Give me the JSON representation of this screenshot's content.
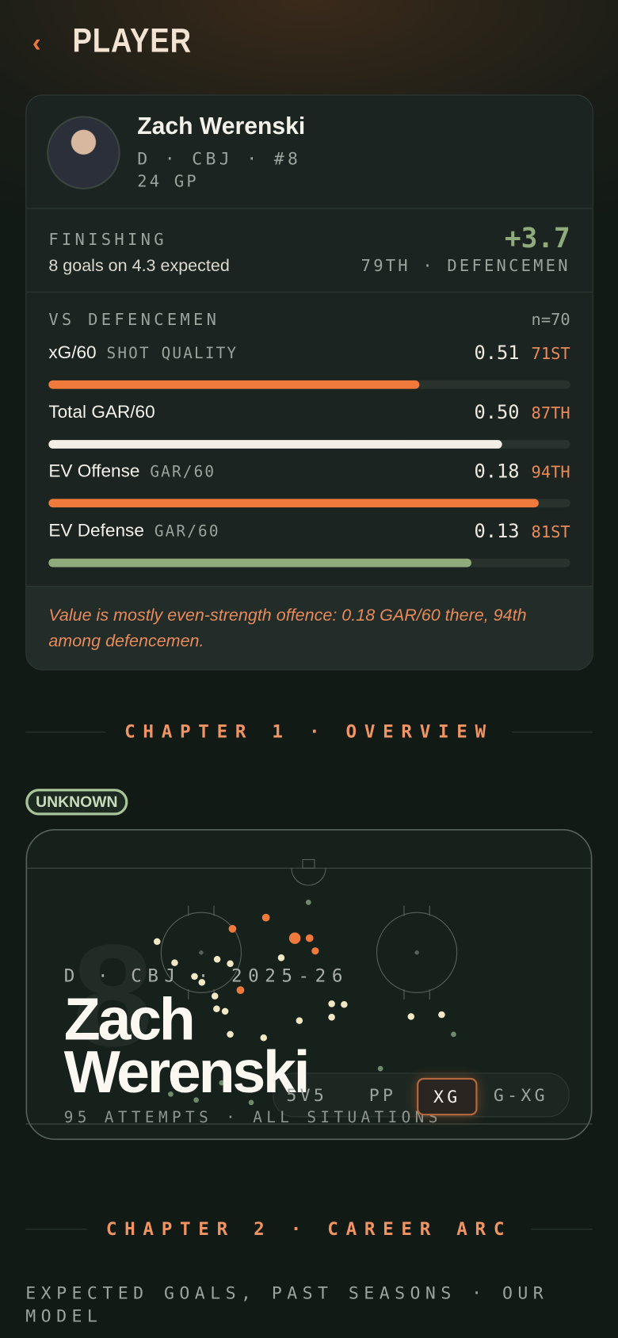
{
  "header": {
    "title": "PLAYER"
  },
  "player": {
    "name": "Zach Werenski",
    "meta": "D · CBJ · #8",
    "games": "24 GP"
  },
  "finishing": {
    "label": "FINISHING",
    "summary": "8 goals on 4.3 expected",
    "value": "+3.7",
    "rank": "79TH · DEFENCEMEN"
  },
  "comparison": {
    "title": "VS DEFENCEMEN",
    "sample": "n=70",
    "metrics": [
      {
        "label": "xG/60",
        "sublabel": "SHOT QUALITY",
        "value": "0.51",
        "percentile": 71,
        "percentile_label": "71ST",
        "color": "#f07a3c"
      },
      {
        "label": "Total GAR/60",
        "value": "0.50",
        "percentile": 87,
        "percentile_label": "87TH",
        "color": "#f3efe6"
      },
      {
        "label": "EV Offense",
        "sublabel": "GAR/60",
        "value": "0.18",
        "percentile": 94,
        "percentile_label": "94TH",
        "color": "#f07a3c"
      },
      {
        "label": "EV Defense",
        "sublabel": "GAR/60",
        "value": "0.13",
        "percentile": 81,
        "percentile_label": "81ST",
        "color": "#8fab7c"
      }
    ]
  },
  "note": "Value is mostly even-strength offence: 0.18 GAR/60 there, 94th among defencemen.",
  "chapter1": {
    "title": "CHAPTER 1 · OVERVIEW",
    "badge": "UNKNOWN",
    "watermark": "8",
    "eyebrow": "D · CBJ · 2025-26",
    "name": "Zach Werenski",
    "caption": "95 ATTEMPTS · ALL SITUATIONS",
    "tabs": [
      "5V5",
      "PP",
      "XG",
      "G-XG"
    ],
    "active_tab": 2,
    "shots": [
      {
        "x": 36.5,
        "y": 32.1,
        "xg": 0.1,
        "color": "#f07a3c"
      },
      {
        "x": 42.4,
        "y": 28.5,
        "xg": 0.1,
        "color": "#f07a3c"
      },
      {
        "x": 47.5,
        "y": 35.1,
        "xg": 0.35,
        "color": "#f07a3c"
      },
      {
        "x": 50.1,
        "y": 35.1,
        "xg": 0.1,
        "color": "#f07a3c"
      },
      {
        "x": 51.1,
        "y": 39.2,
        "xg": 0.08,
        "color": "#f07a3c"
      },
      {
        "x": 37.9,
        "y": 51.8,
        "xg": 0.1,
        "color": "#f07a3c"
      },
      {
        "x": 23.2,
        "y": 36.2,
        "xg": 0.06,
        "color": "#f3e8c4"
      },
      {
        "x": 26.3,
        "y": 43.0,
        "xg": 0.06,
        "color": "#f3e8c4"
      },
      {
        "x": 29.8,
        "y": 47.4,
        "xg": 0.06,
        "color": "#f3e8c4"
      },
      {
        "x": 31.1,
        "y": 49.3,
        "xg": 0.06,
        "color": "#f3e8c4"
      },
      {
        "x": 33.8,
        "y": 41.9,
        "xg": 0.06,
        "color": "#f3e8c4"
      },
      {
        "x": 36.1,
        "y": 43.3,
        "xg": 0.06,
        "color": "#f3e8c4"
      },
      {
        "x": 45.1,
        "y": 41.4,
        "xg": 0.06,
        "color": "#f3e8c4"
      },
      {
        "x": 33.4,
        "y": 53.7,
        "xg": 0.06,
        "color": "#f3e8c4"
      },
      {
        "x": 33.7,
        "y": 57.8,
        "xg": 0.06,
        "color": "#f3e8c4"
      },
      {
        "x": 35.2,
        "y": 58.6,
        "xg": 0.06,
        "color": "#f3e8c4"
      },
      {
        "x": 48.3,
        "y": 61.6,
        "xg": 0.06,
        "color": "#f3e8c4"
      },
      {
        "x": 54.0,
        "y": 56.2,
        "xg": 0.06,
        "color": "#f3e8c4"
      },
      {
        "x": 56.2,
        "y": 56.4,
        "xg": 0.06,
        "color": "#f3e8c4"
      },
      {
        "x": 54.0,
        "y": 60.5,
        "xg": 0.06,
        "color": "#f3e8c4"
      },
      {
        "x": 42.0,
        "y": 67.1,
        "xg": 0.06,
        "color": "#f3e8c4"
      },
      {
        "x": 36.1,
        "y": 66.0,
        "xg": 0.06,
        "color": "#f3e8c4"
      },
      {
        "x": 68.0,
        "y": 60.3,
        "xg": 0.06,
        "color": "#f3e8c4"
      },
      {
        "x": 73.4,
        "y": 59.7,
        "xg": 0.06,
        "color": "#f3e8c4"
      },
      {
        "x": 49.9,
        "y": 23.6,
        "xg": 0.02,
        "color": "#6f8a6a"
      },
      {
        "x": 75.5,
        "y": 66.0,
        "xg": 0.02,
        "color": "#6f8a6a"
      },
      {
        "x": 62.6,
        "y": 77.0,
        "xg": 0.02,
        "color": "#6f8a6a"
      },
      {
        "x": 25.6,
        "y": 85.2,
        "xg": 0.02,
        "color": "#6f8a6a"
      },
      {
        "x": 30.1,
        "y": 87.1,
        "xg": 0.02,
        "color": "#6f8a6a"
      },
      {
        "x": 34.6,
        "y": 81.6,
        "xg": 0.02,
        "color": "#6f8a6a"
      },
      {
        "x": 39.8,
        "y": 87.9,
        "xg": 0.02,
        "color": "#6f8a6a"
      }
    ]
  },
  "chapter2": {
    "title": "CHAPTER 2 · CAREER ARC",
    "subtitle": "EXPECTED GOALS, PAST SEASONS · OUR MODEL"
  }
}
